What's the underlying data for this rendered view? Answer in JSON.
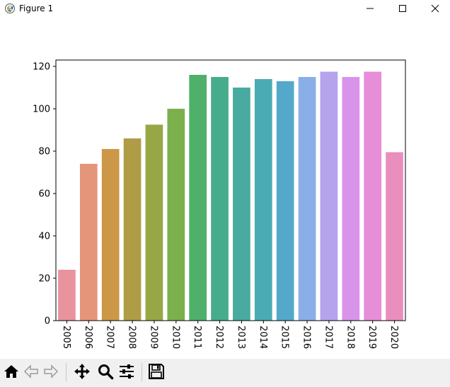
{
  "window": {
    "title": "Figure 1",
    "controls": [
      "minimize",
      "maximize",
      "close"
    ]
  },
  "toolbar": {
    "buttons": [
      "home-icon",
      "back-icon",
      "forward-icon",
      "pan-icon",
      "zoom-icon",
      "configure-icon",
      "save-icon"
    ]
  },
  "chart_data": {
    "type": "bar",
    "title": "",
    "xlabel": "",
    "ylabel": "",
    "categories": [
      "2005",
      "2006",
      "2007",
      "2008",
      "2009",
      "2010",
      "2011",
      "2012",
      "2013",
      "2014",
      "2015",
      "2016",
      "2017",
      "2018",
      "2019",
      "2020"
    ],
    "values": [
      24,
      74,
      81,
      86,
      92.5,
      100,
      116,
      115,
      110,
      114,
      113,
      115,
      117.5,
      115,
      117.5,
      79.5
    ],
    "colors": [
      "#e8939d",
      "#e5957a",
      "#cc9747",
      "#ae9d46",
      "#97a745",
      "#7bb04c",
      "#4eb06b",
      "#47ac8b",
      "#49aa9f",
      "#4aabb4",
      "#54a9cb",
      "#8aaee7",
      "#b5a3ec",
      "#d894ea",
      "#e68ed7",
      "#ea8fbd"
    ],
    "ylim": [
      0,
      123
    ],
    "yticks": [
      0,
      20,
      40,
      60,
      80,
      100,
      120
    ],
    "grid": false,
    "xtick_rotation": "vertical"
  }
}
